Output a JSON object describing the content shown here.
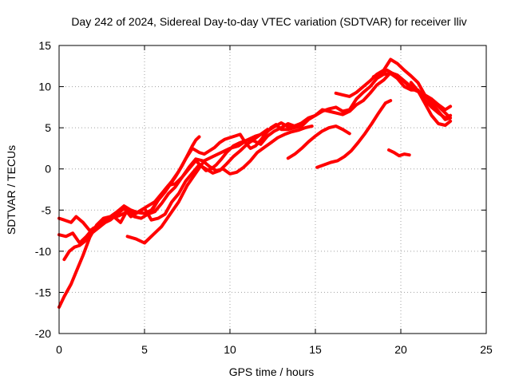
{
  "chart_data": {
    "type": "line",
    "title": "Day 242 of 2024, Sidereal Day-to-day VTEC variation (SDTVAR) for receiver lliv",
    "xlabel": "GPS time / hours",
    "ylabel": "SDTVAR / TECUs",
    "xlim": [
      0,
      25
    ],
    "ylim": [
      -20,
      15
    ],
    "xticks": [
      0,
      5,
      10,
      15,
      20,
      25
    ],
    "yticks": [
      -20,
      -15,
      -10,
      -5,
      0,
      5,
      10,
      15
    ],
    "grid": true,
    "legend": "none",
    "series_color": "#ff0000",
    "series": [
      {
        "x": [
          0.0,
          0.3,
          0.7,
          1.0,
          1.4,
          1.8,
          2.2,
          2.6,
          3.0,
          3.4,
          3.8,
          4.2,
          4.6,
          5.0,
          5.4,
          5.8,
          6.2,
          6.6,
          7.0,
          7.4,
          7.8,
          8.2,
          8.5,
          8.8,
          9.1,
          9.4,
          9.7,
          10.0,
          10.3,
          10.6,
          10.9,
          11.2,
          11.5,
          11.8,
          12.1,
          12.4,
          12.7,
          13.0,
          13.4,
          13.8,
          14.2,
          14.6,
          15.0,
          15.4,
          15.8,
          16.2,
          16.6,
          17.0,
          17.4,
          17.8,
          18.2,
          18.6,
          19.0,
          19.4,
          19.8,
          20.2,
          20.6,
          21.0,
          21.4,
          21.8,
          22.2,
          22.6,
          22.9
        ],
        "y": [
          -16.8,
          -15.5,
          -14.0,
          -12.5,
          -10.5,
          -8.3,
          -6.8,
          -6.0,
          -5.8,
          -5.2,
          -4.5,
          -5.0,
          -5.3,
          -5.4,
          -5.0,
          -3.8,
          -2.5,
          -1.5,
          -0.3,
          1.2,
          2.5,
          2.0,
          1.8,
          2.2,
          2.6,
          3.2,
          3.6,
          3.8,
          4.0,
          4.2,
          3.2,
          2.5,
          2.8,
          3.5,
          4.3,
          5.0,
          5.4,
          4.8,
          4.8,
          5.0,
          5.2,
          6.0,
          6.5,
          7.0,
          7.3,
          7.5,
          7.0,
          7.2,
          8.5,
          9.3,
          10.0,
          11.0,
          11.5,
          11.6,
          11.0,
          10.0,
          9.6,
          9.6,
          8.4,
          7.5,
          6.8,
          6.2,
          6.5
        ]
      },
      {
        "x": [
          0.0,
          0.3,
          0.7,
          1.0,
          1.4,
          1.8,
          2.2,
          2.6,
          3.0,
          3.5,
          4.0,
          4.4,
          4.8,
          5.2,
          5.6,
          6.0,
          6.4,
          6.8,
          7.2,
          7.6,
          8.0,
          8.3,
          8.6,
          8.9,
          9.2,
          9.5,
          9.8,
          10.2,
          10.6,
          11.0,
          11.4,
          11.8,
          12.2,
          12.6,
          13.0,
          13.4,
          13.8,
          14.2,
          14.6,
          15.0,
          15.4,
          15.8,
          16.2,
          16.6,
          17.0,
          17.4,
          17.8,
          18.2,
          18.6,
          19.0,
          19.4,
          19.8,
          20.2,
          20.6,
          21.0,
          21.4,
          21.8,
          22.2,
          22.6,
          22.9
        ],
        "y": [
          -6.0,
          -6.2,
          -6.5,
          -5.8,
          -6.5,
          -7.5,
          -7.0,
          -6.2,
          -6.0,
          -5.7,
          -5.2,
          -5.5,
          -5.0,
          -4.5,
          -4.0,
          -3.0,
          -2.0,
          -1.8,
          -1.0,
          0.0,
          1.0,
          0.4,
          -0.2,
          0.0,
          0.5,
          1.2,
          2.0,
          2.8,
          3.2,
          3.5,
          3.4,
          3.0,
          4.0,
          4.6,
          5.0,
          5.5,
          5.2,
          5.6,
          6.2,
          6.5,
          7.2,
          7.0,
          6.8,
          6.6,
          7.0,
          7.8,
          8.3,
          9.2,
          10.2,
          10.8,
          11.7,
          11.4,
          10.7,
          10.0,
          9.5,
          9.0,
          8.5,
          7.8,
          7.2,
          7.6
        ]
      },
      {
        "x": [
          0.0,
          0.4,
          0.8,
          1.2,
          1.6,
          2.0,
          2.4,
          2.8,
          3.2,
          3.6,
          4.0,
          4.4,
          4.8,
          5.2,
          5.6,
          6.0,
          6.4,
          6.8,
          7.2,
          7.6,
          8.0,
          8.4,
          8.8,
          9.2,
          9.6,
          10.0,
          10.4,
          10.8,
          11.2,
          11.6,
          12.0,
          12.4,
          12.8,
          13.2,
          13.6,
          14.0,
          14.4,
          14.8
        ],
        "y": [
          -8.0,
          -8.2,
          -7.8,
          -9.0,
          -8.2,
          -7.2,
          -6.8,
          -6.3,
          -5.8,
          -6.5,
          -5.0,
          -5.8,
          -6.0,
          -5.5,
          -5.2,
          -4.2,
          -3.0,
          -2.2,
          -1.0,
          0.2,
          1.2,
          1.0,
          0.3,
          -0.2,
          0.0,
          -0.6,
          -0.4,
          0.2,
          1.0,
          2.0,
          2.6,
          3.2,
          3.8,
          4.2,
          4.5,
          4.7,
          5.0,
          5.2
        ]
      },
      {
        "x": [
          0.3,
          0.6,
          0.9,
          1.2,
          1.5,
          1.8,
          2.1,
          2.4,
          2.7,
          3.0,
          3.4,
          3.8,
          4.2,
          4.6,
          5.0,
          5.4,
          5.8,
          6.2,
          6.6,
          7.0,
          7.4,
          7.8,
          8.2,
          8.6,
          9.0,
          9.4,
          9.8,
          10.2,
          10.6,
          11.0,
          11.4,
          11.8,
          12.2
        ],
        "y": [
          -11.0,
          -10.0,
          -9.5,
          -9.3,
          -8.8,
          -8.0,
          -7.5,
          -7.0,
          -6.5,
          -6.2,
          -5.5,
          -4.8,
          -5.8,
          -5.3,
          -4.8,
          -6.2,
          -6.0,
          -5.5,
          -4.0,
          -3.0,
          -1.5,
          -0.5,
          0.5,
          0.0,
          -0.5,
          -0.2,
          0.6,
          1.5,
          2.2,
          3.0,
          3.6,
          4.2,
          4.8
        ]
      },
      {
        "x": [
          4.0,
          4.5,
          5.0,
          5.5,
          6.0,
          6.5,
          7.0,
          7.5,
          8.0,
          8.5,
          9.0,
          9.5,
          10.0,
          10.5,
          11.0,
          11.5,
          12.0,
          12.5,
          13.0,
          13.5,
          14.0
        ],
        "y": [
          -8.2,
          -8.5,
          -9.0,
          -8.0,
          -7.0,
          -5.5,
          -4.0,
          -2.0,
          -0.5,
          1.0,
          1.5,
          2.0,
          2.5,
          2.8,
          3.5,
          4.0,
          4.3,
          5.0,
          5.6,
          5.0,
          5.4
        ]
      },
      {
        "x": [
          5.4,
          5.6,
          5.8,
          6.0,
          6.2,
          6.4,
          6.6,
          6.8,
          7.0,
          7.2,
          7.4,
          7.6,
          7.8,
          8.0,
          8.2
        ],
        "y": [
          -5.2,
          -4.5,
          -3.8,
          -3.3,
          -2.8,
          -2.2,
          -1.6,
          -1.0,
          -0.3,
          0.4,
          1.2,
          2.0,
          2.8,
          3.5,
          3.9
        ]
      },
      {
        "x": [
          13.4,
          13.8,
          14.2,
          14.6,
          15.0,
          15.4,
          15.8,
          16.2,
          16.6,
          17.0
        ],
        "y": [
          1.3,
          1.8,
          2.5,
          3.3,
          4.0,
          4.6,
          5.0,
          5.2,
          4.8,
          4.3
        ]
      },
      {
        "x": [
          15.1,
          15.5,
          15.9,
          16.3,
          16.7,
          17.1,
          17.5,
          17.9,
          18.3,
          18.7,
          19.1,
          19.4
        ],
        "y": [
          0.2,
          0.5,
          0.8,
          1.0,
          1.5,
          2.2,
          3.2,
          4.3,
          5.5,
          6.8,
          8.0,
          8.3
        ]
      },
      {
        "x": [
          16.2,
          16.6,
          17.0,
          17.4,
          17.8,
          18.2,
          18.6,
          19.0,
          19.4,
          19.8,
          20.2,
          20.6,
          21.0,
          21.4,
          21.8,
          22.2,
          22.6,
          22.9
        ],
        "y": [
          9.2,
          9.0,
          8.8,
          9.3,
          10.0,
          10.7,
          11.5,
          12.0,
          13.3,
          12.8,
          12.0,
          11.3,
          10.5,
          9.0,
          8.0,
          7.0,
          6.0,
          6.2
        ]
      },
      {
        "x": [
          19.3,
          19.6,
          19.9,
          20.2,
          20.5
        ],
        "y": [
          2.3,
          2.0,
          1.6,
          1.8,
          1.7
        ]
      },
      {
        "x": [
          20.6,
          21.0,
          21.4,
          21.8,
          22.2,
          22.6,
          22.9
        ],
        "y": [
          10.5,
          9.5,
          8.0,
          6.5,
          5.5,
          5.3,
          5.8
        ]
      },
      {
        "x": [
          18.4,
          18.8,
          19.2,
          19.6,
          20.0,
          20.4,
          20.8,
          21.2,
          21.6,
          22.0,
          22.4,
          22.8
        ],
        "y": [
          11.2,
          11.6,
          12.0,
          11.5,
          11.0,
          10.2,
          9.6,
          9.2,
          8.6,
          8.0,
          7.2,
          6.4
        ]
      }
    ]
  }
}
